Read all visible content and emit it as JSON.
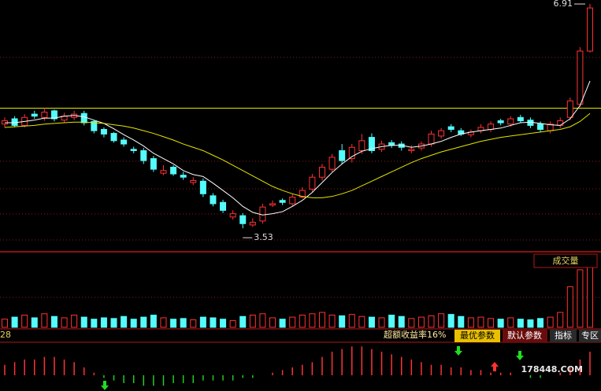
{
  "chart_data": {
    "type": "candlestick",
    "ylim": [
      3.2,
      6.97
    ],
    "up_color": "#ff3232",
    "down_color": "#54fcfc",
    "open": [
      5.1,
      5.18,
      5.08,
      5.25,
      5.2,
      5.3,
      5.16,
      5.2,
      5.26,
      5.14,
      5.02,
      4.96,
      4.86,
      4.72,
      4.7,
      4.58,
      4.36,
      4.45,
      4.33,
      4.22,
      4.24,
      4.02,
      3.92,
      3.7,
      3.72,
      3.58,
      3.64,
      3.88,
      3.95,
      3.9,
      4.0,
      4.12,
      4.3,
      4.42,
      4.7,
      4.58,
      4.7,
      4.9,
      4.72,
      4.82,
      4.8,
      4.7,
      4.74,
      4.8,
      4.92,
      5.06,
      5.0,
      4.94,
      5.0,
      5.02,
      5.15,
      5.1,
      5.2,
      5.16,
      5.1,
      5.0,
      5.08,
      5.2,
      5.4,
      6.2
    ],
    "high": [
      5.2,
      5.22,
      5.25,
      5.3,
      5.34,
      5.32,
      5.27,
      5.3,
      5.3,
      5.16,
      5.05,
      4.98,
      4.9,
      4.76,
      4.74,
      4.62,
      4.48,
      4.48,
      4.38,
      4.3,
      4.28,
      4.06,
      3.96,
      3.8,
      3.76,
      3.68,
      3.9,
      3.95,
      3.98,
      4.05,
      4.15,
      4.35,
      4.5,
      4.65,
      4.8,
      4.8,
      4.95,
      4.96,
      4.85,
      4.86,
      4.84,
      4.78,
      4.84,
      5.0,
      5.04,
      5.1,
      5.04,
      5.02,
      5.1,
      5.14,
      5.18,
      5.22,
      5.24,
      5.2,
      5.14,
      5.14,
      5.2,
      5.5,
      6.26,
      6.91
    ],
    "low": [
      5.05,
      5.05,
      5.05,
      5.18,
      5.15,
      5.14,
      5.12,
      5.16,
      5.08,
      4.96,
      4.9,
      4.82,
      4.76,
      4.66,
      4.5,
      4.38,
      4.33,
      4.32,
      4.26,
      4.18,
      4.0,
      3.86,
      3.76,
      3.66,
      3.53,
      3.55,
      3.6,
      3.85,
      3.88,
      3.86,
      3.98,
      4.08,
      4.25,
      4.38,
      4.5,
      4.52,
      4.65,
      4.66,
      4.68,
      4.74,
      4.7,
      4.66,
      4.7,
      4.76,
      4.88,
      4.98,
      4.92,
      4.9,
      4.96,
      4.98,
      5.08,
      5.06,
      5.12,
      5.04,
      4.98,
      4.96,
      5.04,
      5.16,
      5.36,
      6.18
    ],
    "close": [
      5.15,
      5.08,
      5.2,
      5.22,
      5.28,
      5.18,
      5.22,
      5.25,
      5.12,
      5.0,
      4.95,
      4.85,
      4.8,
      4.7,
      4.55,
      4.42,
      4.4,
      4.35,
      4.3,
      4.25,
      4.05,
      3.9,
      3.8,
      3.75,
      3.6,
      3.62,
      3.85,
      3.9,
      3.92,
      4.0,
      4.1,
      4.3,
      4.45,
      4.6,
      4.55,
      4.75,
      4.85,
      4.7,
      4.8,
      4.78,
      4.75,
      4.72,
      4.8,
      4.95,
      5.0,
      5.02,
      4.95,
      4.98,
      5.05,
      5.1,
      5.12,
      5.18,
      5.15,
      5.08,
      5.02,
      5.1,
      5.15,
      5.45,
      6.2,
      6.85
    ],
    "ma": [
      {
        "color": "#ffffff",
        "values": [
          5.12,
          5.12,
          5.14,
          5.16,
          5.19,
          5.19,
          5.22,
          5.23,
          5.21,
          5.16,
          5.11,
          5.03,
          4.94,
          4.86,
          4.77,
          4.66,
          4.58,
          4.5,
          4.4,
          4.34,
          4.31,
          4.21,
          4.1,
          3.99,
          3.86,
          3.77,
          3.73,
          3.75,
          3.78,
          3.86,
          3.95,
          4.07,
          4.22,
          4.37,
          4.5,
          4.61,
          4.69,
          4.73,
          4.76,
          4.78,
          4.78,
          4.75,
          4.77,
          4.8,
          4.84,
          4.9,
          4.95,
          4.98,
          5.0,
          5.02,
          5.04,
          5.08,
          5.12,
          5.13,
          5.11,
          5.09,
          5.08,
          5.18,
          5.38,
          5.75
        ]
      },
      {
        "color": "#e6e600",
        "values": [
          5.05,
          5.06,
          5.07,
          5.08,
          5.1,
          5.11,
          5.12,
          5.13,
          5.13,
          5.12,
          5.11,
          5.09,
          5.07,
          5.04,
          5.0,
          4.96,
          4.91,
          4.86,
          4.8,
          4.75,
          4.7,
          4.63,
          4.56,
          4.48,
          4.4,
          4.32,
          4.24,
          4.16,
          4.1,
          4.05,
          4.01,
          3.99,
          3.99,
          4.01,
          4.05,
          4.1,
          4.17,
          4.24,
          4.31,
          4.38,
          4.45,
          4.52,
          4.58,
          4.63,
          4.68,
          4.72,
          4.76,
          4.8,
          4.84,
          4.87,
          4.9,
          4.92,
          4.94,
          4.96,
          4.98,
          5.0,
          5.02,
          5.06,
          5.14,
          5.26
        ]
      }
    ],
    "reference_line": 5.34,
    "volume": {
      "title": "成交量",
      "ylim": [
        0,
        100
      ],
      "values": [
        12,
        15,
        18,
        14,
        20,
        16,
        14,
        18,
        15,
        12,
        14,
        13,
        16,
        12,
        15,
        18,
        14,
        12,
        13,
        11,
        15,
        14,
        12,
        10,
        16,
        18,
        20,
        14,
        12,
        15,
        18,
        20,
        22,
        18,
        17,
        19,
        16,
        15,
        14,
        18,
        16,
        13,
        15,
        17,
        20,
        19,
        16,
        14,
        15,
        13,
        12,
        14,
        12,
        11,
        13,
        15,
        22,
        60,
        85,
        98
      ]
    },
    "indicator": {
      "ylim": [
        -6,
        12
      ],
      "values": [
        4,
        5,
        6,
        6,
        7,
        7,
        6,
        5,
        3,
        1,
        -1,
        -2,
        -3,
        -3,
        -4,
        -4,
        -4,
        -3,
        -3,
        -3,
        -2,
        -2,
        -2,
        -2,
        -1,
        -1,
        0,
        1,
        2,
        3,
        4,
        5,
        7,
        9,
        10,
        11,
        11,
        10,
        9,
        8,
        7,
        6,
        5,
        4,
        4,
        3,
        3,
        2,
        2,
        1,
        1,
        1,
        0,
        -1,
        -1,
        0,
        1,
        3,
        6,
        9
      ]
    },
    "toolbar": {
      "left": "28",
      "excess": "超额收益率16%",
      "buttons": [
        "最优参数",
        "默认参数",
        "指标",
        "专区"
      ]
    },
    "watermark": "178448.COM"
  }
}
